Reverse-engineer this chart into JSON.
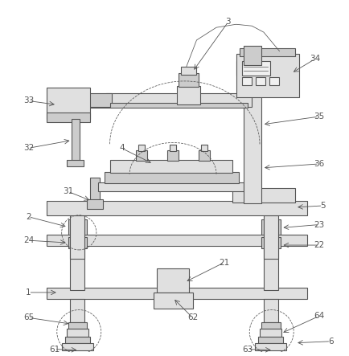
{
  "fig_width": 4.35,
  "fig_height": 4.43,
  "dpi": 100,
  "bg_color": "#ffffff",
  "lc": "#555555",
  "lw": 0.8,
  "tlw": 0.55,
  "fc_light": "#f0f0f0",
  "fc_mid": "#e0e0e0",
  "fc_dark": "#cccccc"
}
